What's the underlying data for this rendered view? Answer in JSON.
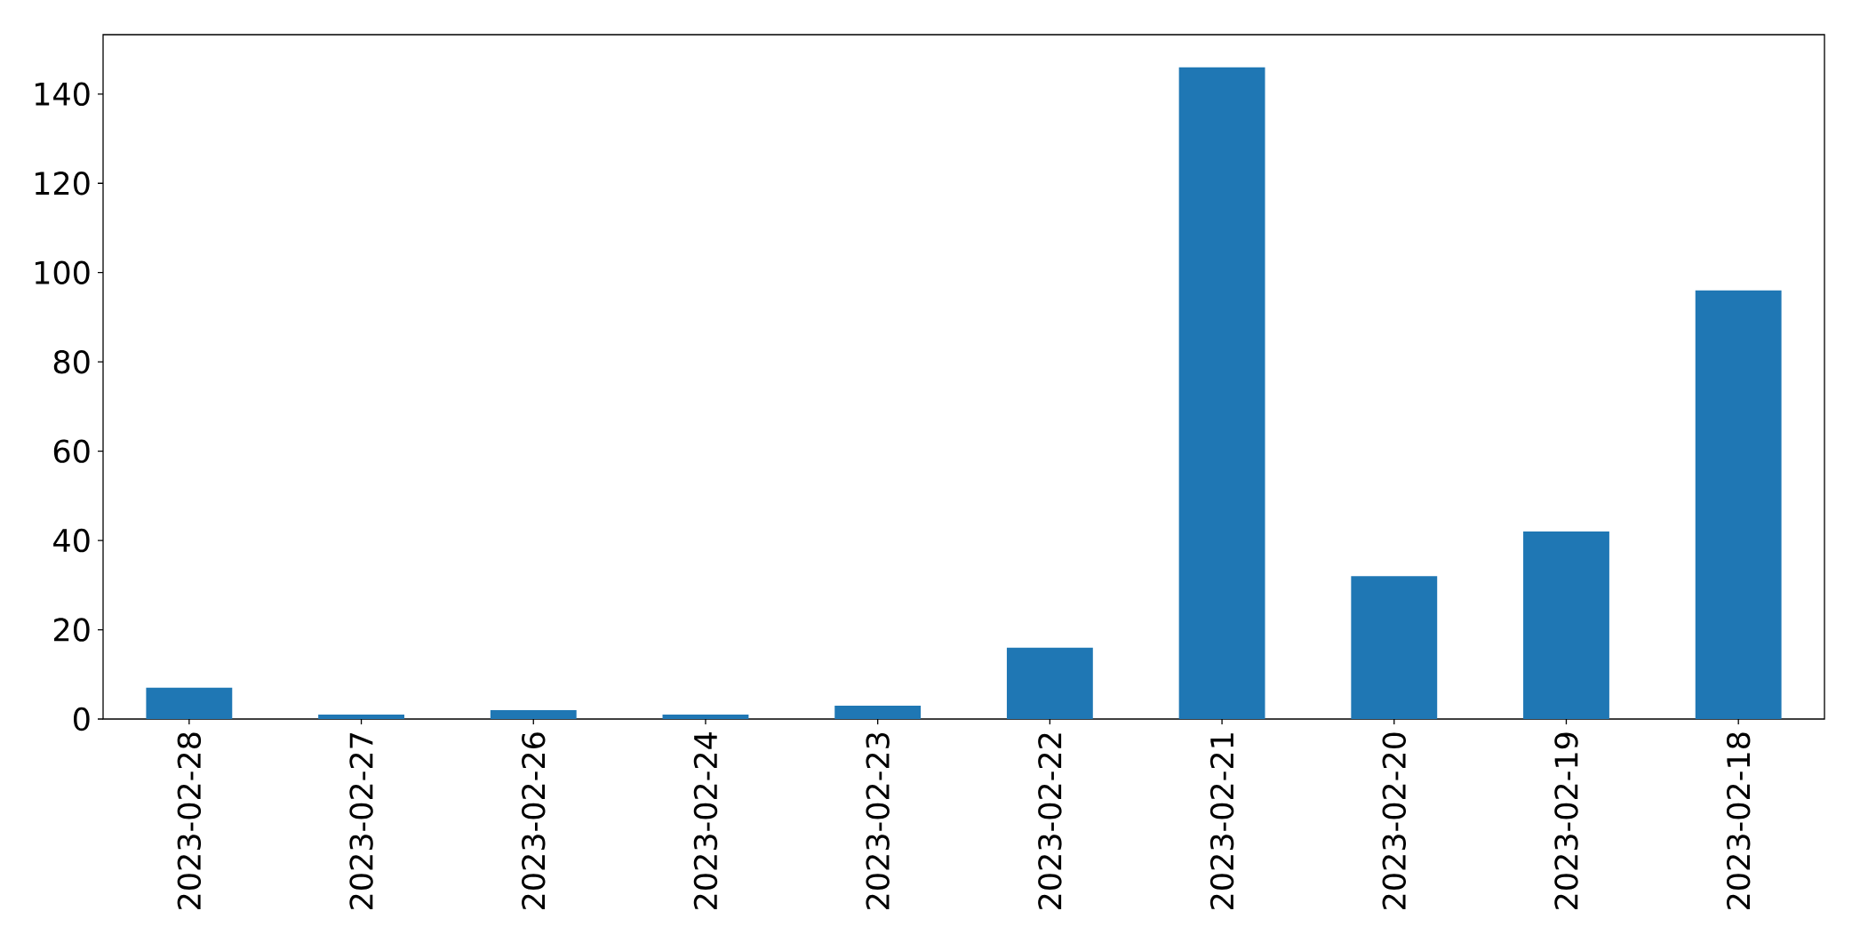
{
  "chart_data": {
    "type": "bar",
    "categories": [
      "2023-02-28",
      "2023-02-27",
      "2023-02-26",
      "2023-02-24",
      "2023-02-23",
      "2023-02-22",
      "2023-02-21",
      "2023-02-20",
      "2023-02-19",
      "2023-02-18"
    ],
    "values": [
      7,
      1,
      2,
      1,
      3,
      16,
      146,
      32,
      42,
      96
    ],
    "color": "#1f77b4",
    "ylim": [
      0,
      153.3
    ],
    "yticks": [
      0,
      20,
      40,
      60,
      80,
      100,
      120,
      140
    ]
  }
}
